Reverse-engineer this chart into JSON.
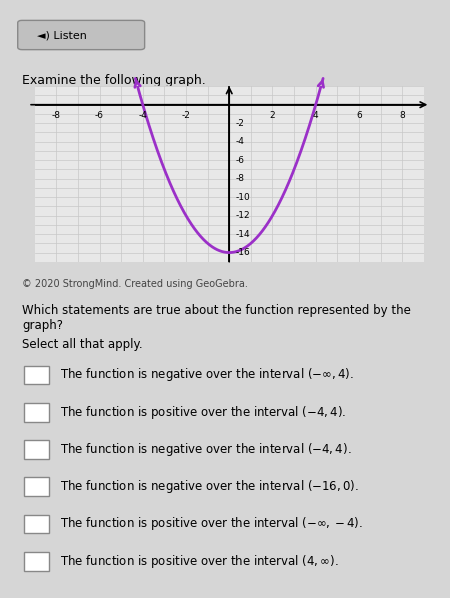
{
  "title_top": "Listen",
  "subtitle": "Examine the following graph.",
  "copyright": "© 2020 StrongMind. Created using GeoGebra.",
  "question": "Which statements are true about the function represented by the graph?",
  "instruction": "Select all that apply.",
  "choices": [
    "The function is negative over the interval $(-\\infty, 4)$.",
    "The function is positive over the interval $(-4, 4)$.",
    "The function is negative over the interval $(-4, 4)$.",
    "The function is negative over the interval $(-16, 0)$.",
    "The function is positive over the interval $(-\\infty, -4)$.",
    "The function is positive over the interval $(4, \\infty)$."
  ],
  "curve_color": "#9b30c8",
  "curve_linewidth": 2.0,
  "grid_color": "#c8c8c8",
  "axis_color": "#000000",
  "bg_color": "#f0f0f0",
  "plot_bg_color": "#e8e8e8",
  "xlim": [
    -9,
    9
  ],
  "ylim": [
    -17,
    2
  ],
  "xticks": [
    -8,
    -6,
    -4,
    -2,
    0,
    2,
    4,
    6,
    8
  ],
  "yticks": [
    -16,
    -14,
    -12,
    -10,
    -8,
    -6,
    -4,
    -2,
    0
  ],
  "a": 1,
  "b": 0,
  "c": -16,
  "fig_width": 4.5,
  "fig_height": 5.98,
  "dpi": 100
}
